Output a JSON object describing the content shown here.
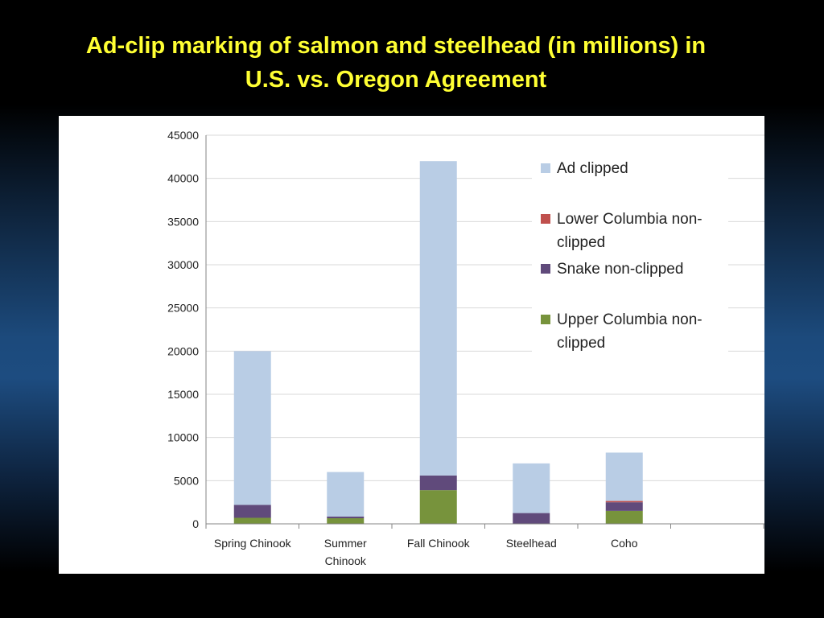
{
  "slide": {
    "title_line1": "Ad-clip marking of salmon and steelhead (in millions) in",
    "title_line2": "U.S. vs. Oregon Agreement"
  },
  "chart_data": {
    "type": "bar",
    "stacked": true,
    "categories": [
      "Spring Chinook",
      "Summer Chinook",
      "Fall Chinook",
      "Steelhead",
      "Coho"
    ],
    "category_lines": [
      [
        "Spring Chinook"
      ],
      [
        "Summer",
        "Chinook"
      ],
      [
        "Fall Chinook"
      ],
      [
        "Steelhead"
      ],
      [
        "Coho"
      ]
    ],
    "series": [
      {
        "name": "Upper Columbia non-clipped",
        "legend_lines": [
          "Upper Columbia non-",
          "clipped"
        ],
        "color": "#77933c",
        "values": [
          700,
          650,
          3900,
          0,
          1500
        ]
      },
      {
        "name": "Snake non-clipped",
        "legend_lines": [
          "Snake non-clipped"
        ],
        "color": "#604a7b",
        "values": [
          1500,
          200,
          1700,
          1250,
          1000
        ]
      },
      {
        "name": "Lower Columbia non-clipped",
        "legend_lines": [
          "Lower Columbia non-",
          "clipped"
        ],
        "color": "#c0504d",
        "values": [
          0,
          0,
          0,
          0,
          150
        ]
      },
      {
        "name": "Ad clipped",
        "legend_lines": [
          "Ad clipped"
        ],
        "color": "#b9cde5",
        "values": [
          17800,
          5150,
          36400,
          5750,
          5600
        ]
      }
    ],
    "legend_order": [
      3,
      2,
      1,
      0
    ],
    "ylim": [
      0,
      45000
    ],
    "yticks": [
      0,
      5000,
      10000,
      15000,
      20000,
      25000,
      30000,
      35000,
      40000,
      45000
    ],
    "xlabel": "",
    "ylabel": "",
    "grid": true,
    "legend_position": "top-right"
  }
}
